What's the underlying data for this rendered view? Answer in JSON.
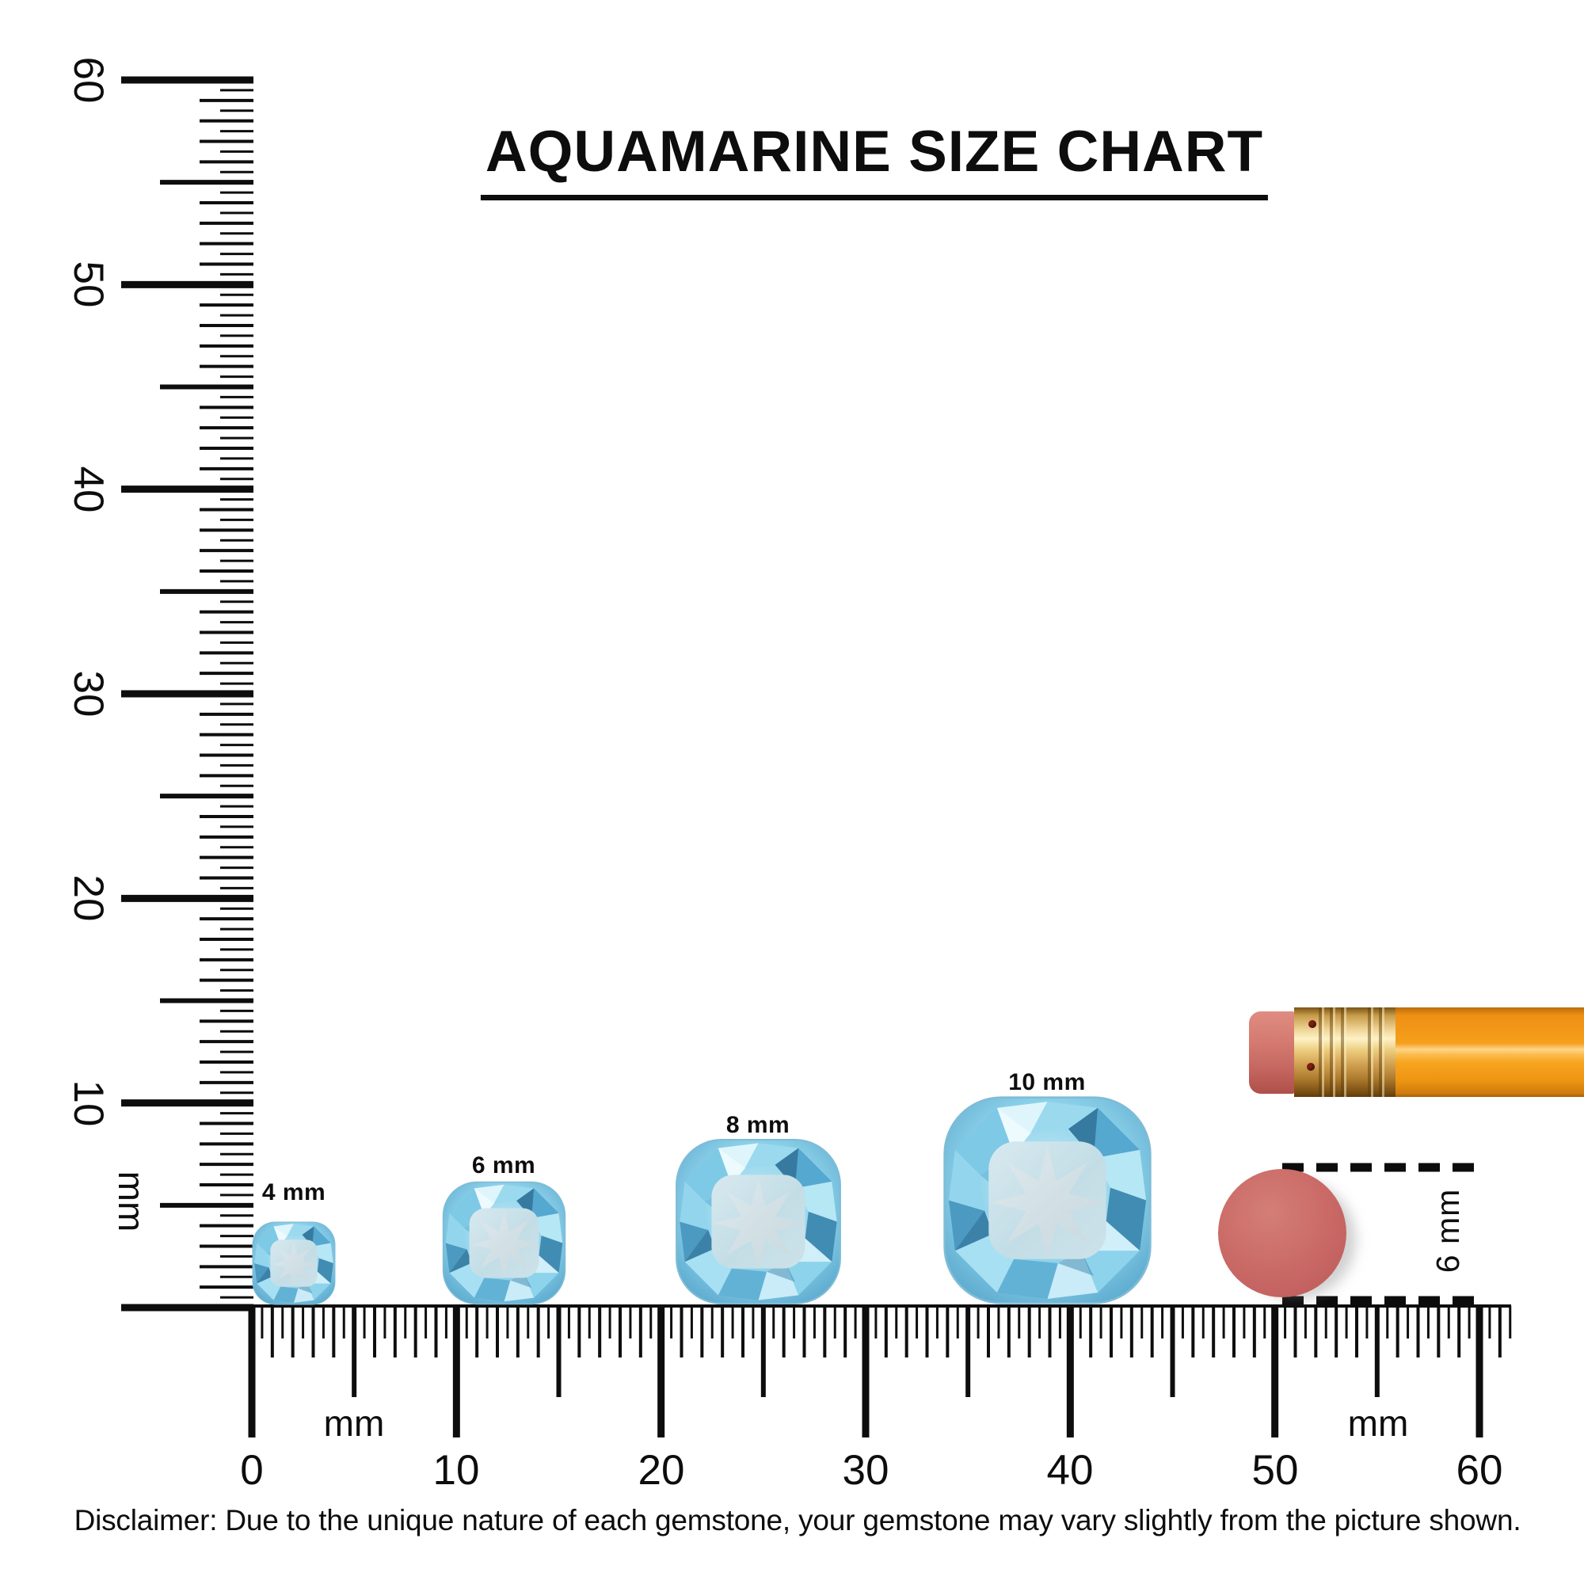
{
  "title": "AQUAMARINE SIZE CHART",
  "vertical_ruler": {
    "unit": "mm",
    "labels": [
      "60",
      "50",
      "40",
      "30",
      "20",
      "10"
    ],
    "range_mm": [
      0,
      60
    ],
    "tick_step_mm": 0.5
  },
  "horizontal_ruler": {
    "unit_left": "mm",
    "unit_right": "mm",
    "labels": [
      "0",
      "10",
      "20",
      "30",
      "40",
      "50",
      "60"
    ],
    "range_mm": [
      0,
      61.5
    ],
    "tick_step_mm": 0.5
  },
  "gems": [
    {
      "label": "4 mm",
      "size_mm": 4
    },
    {
      "label": "6 mm",
      "size_mm": 6
    },
    {
      "label": "8 mm",
      "size_mm": 8
    },
    {
      "label": "10 mm",
      "size_mm": 10
    }
  ],
  "eraser_reference": {
    "label": "6 mm",
    "diameter_mm": 6
  },
  "disclaimer": "Disclaimer: Due to the unique nature of each gemstone, your gemstone may vary slightly from the picture shown.",
  "colors": {
    "ink": "#0d0d0d",
    "gem_light": "#c3ecf8",
    "gem_mid": "#8ed4ec",
    "gem_deep": "#4d9cc2",
    "gem_table": "#cfdfe5",
    "eraser_pink": "#cb6b67",
    "eraser_tip_pink": "#d47a70",
    "ferrule_gold": "#eccc7e",
    "pencil_orange": "#f59f1c"
  }
}
